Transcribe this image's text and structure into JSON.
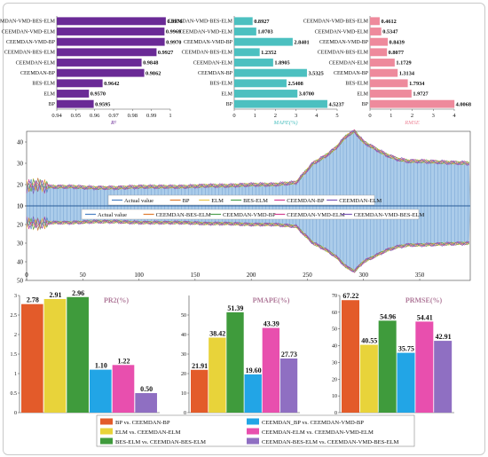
{
  "chart_data": [
    {
      "type": "bar",
      "orientation": "horizontal",
      "xlabel": "R²",
      "xlim": [
        0.94,
        1.0
      ],
      "xticks": [
        "0.94",
        "0.95",
        "0.96",
        "0.97",
        "0.98",
        "0.99",
        "1"
      ],
      "categories": [
        "CEEMDAN-VMD-BES-ELM",
        "CEEMDAN-VMD-ELM",
        "CEEMDAN-VMD-BP",
        "CEEMDAN-BES-ELM",
        "CEEMDAN-ELM",
        "CEEMDAN-BP",
        "BES-ELM",
        "ELM",
        "BP"
      ],
      "values": [
        0.9976,
        0.9969,
        0.997,
        0.9927,
        0.9848,
        0.9862,
        0.9642,
        0.957,
        0.9595
      ],
      "labels": [
        "0.9976",
        "0.9969",
        "0.9970",
        "0.9927",
        "0.9848",
        "0.9862",
        "0.9642",
        "0.9570",
        "0.9595"
      ],
      "color": "#6a2a96"
    },
    {
      "type": "bar",
      "orientation": "horizontal",
      "xlabel": "MAPE(%)",
      "xlim": [
        0,
        5
      ],
      "xticks": [
        "0",
        "1",
        "2",
        "3",
        "4",
        "5"
      ],
      "categories": [
        "CEEMDAN-VMD-BES-ELM",
        "CEEMDAN-VMD-ELM",
        "CEEMDAN-VMD-BP",
        "CEEMDAN-BES-ELM",
        "CEEMDAN-ELM",
        "CEEMDAN-BP",
        "BES-ELM",
        "ELM",
        "BP"
      ],
      "values": [
        0.8927,
        1.0703,
        2.8401,
        1.2352,
        1.8905,
        3.5325,
        2.5408,
        3.07,
        4.5237
      ],
      "labels": [
        "0.8927",
        "1.0703",
        "2.8401",
        "1.2352",
        "1.8905",
        "3.5325",
        "2.5408",
        "3.0700",
        "4.5237"
      ],
      "color": "#4cc0c0"
    },
    {
      "type": "bar",
      "orientation": "horizontal",
      "xlabel": "RMSE",
      "xlim": [
        0,
        4
      ],
      "xticks": [
        "0",
        "1",
        "2",
        "3",
        "4"
      ],
      "categories": [
        "CEEMDAN-VMD-BES-ELM",
        "CEEMDAN-VMD-ELM",
        "CEEMDAN-VMD-BP",
        "CEEMDAN-BES-ELM",
        "CEEMDAN-ELM",
        "CEEMDAN-BP",
        "BES-ELM",
        "ELM",
        "BP"
      ],
      "values": [
        0.4612,
        0.5347,
        0.8439,
        0.8077,
        1.1729,
        1.3134,
        1.7934,
        1.9727,
        4.0068
      ],
      "labels": [
        "0.4612",
        "0.5347",
        "0.8439",
        "0.8077",
        "1.1729",
        "1.3134",
        "1.7934",
        "1.9727",
        "4.0068"
      ],
      "color": "#ee8a9c"
    },
    {
      "type": "line",
      "description_none": "",
      "xlim": [
        0,
        395
      ],
      "xticks": [
        "0",
        "50",
        "100",
        "150",
        "200",
        "250",
        "300",
        "350"
      ],
      "top_ylim": [
        10,
        45
      ],
      "top_yticks": [
        "10",
        "20",
        "30",
        "40"
      ],
      "bottom_ylim": [
        10,
        50
      ],
      "bottom_yticks": [
        "10",
        "20",
        "30",
        "40",
        "50"
      ],
      "top_legend": [
        "Actual value",
        "BP",
        "ELM",
        "BES-ELM",
        "CEEMDAN-BP",
        "CEEMDAN-ELM"
      ],
      "bottom_legend": [
        "Actual value",
        "CEEMDAN-BES-ELM",
        "CEEMDAN-VMD-BP",
        "CEEMDAN-VMD-ELM",
        "CEEMDAN-VMD-BES-ELM"
      ],
      "series_colors": [
        "#4a7fc0",
        "#e07b2e",
        "#e8c44a",
        "#4d9e4d",
        "#d23f8f",
        "#7a57b5"
      ],
      "actual": [
        [
          0,
          19
        ],
        [
          10,
          20
        ],
        [
          20,
          19
        ],
        [
          40,
          19
        ],
        [
          60,
          18.5
        ],
        [
          80,
          18.5
        ],
        [
          100,
          19
        ],
        [
          120,
          19
        ],
        [
          140,
          19
        ],
        [
          160,
          19.5
        ],
        [
          180,
          19.5
        ],
        [
          200,
          20
        ],
        [
          220,
          20
        ],
        [
          240,
          21
        ],
        [
          255,
          30
        ],
        [
          265,
          33
        ],
        [
          275,
          37
        ],
        [
          285,
          43
        ],
        [
          292,
          45
        ],
        [
          300,
          40
        ],
        [
          310,
          37
        ],
        [
          320,
          34
        ],
        [
          330,
          32
        ],
        [
          340,
          31
        ],
        [
          350,
          31
        ],
        [
          370,
          30.5
        ],
        [
          395,
          30
        ]
      ]
    },
    {
      "type": "bar",
      "title": "PR2(%)",
      "ylim": [
        0,
        3
      ],
      "yticks": [
        "0",
        "0.5",
        "1",
        "1.5",
        "2",
        "2.5",
        "3"
      ],
      "values": [
        2.78,
        2.91,
        2.96,
        1.1,
        1.22,
        0.5
      ],
      "labels": [
        "2.78",
        "2.91",
        "2.96",
        "1.10",
        "1.22",
        "0.50"
      ]
    },
    {
      "type": "bar",
      "title": "PMAPE(%)",
      "ylim": [
        0,
        60
      ],
      "yticks": [
        "0",
        "10",
        "20",
        "30",
        "40",
        "50"
      ],
      "values": [
        21.91,
        38.42,
        51.39,
        19.6,
        43.39,
        27.73
      ],
      "labels": [
        "21.91",
        "38.42",
        "51.39",
        "19.60",
        "43.39",
        "27.73"
      ]
    },
    {
      "type": "bar",
      "title": "PRMSE(%)",
      "ylim": [
        0,
        70
      ],
      "yticks": [
        "0",
        "10",
        "20",
        "30",
        "40",
        "50",
        "60",
        "70"
      ],
      "values": [
        67.22,
        40.55,
        54.96,
        35.75,
        54.41,
        42.91
      ],
      "labels": [
        "67.22",
        "40.55",
        "54.96",
        "35.75",
        "54.41",
        "42.91"
      ]
    }
  ],
  "comparison_legend": [
    {
      "label": "BP   vs. CEEMDAN-BP",
      "color": "#e35b2a"
    },
    {
      "label": "CEEMDAN_BP  vs. CEEMDAN-VMD-BP",
      "color": "#22a5e6"
    },
    {
      "label": "ELM   vs. CEEMDAN-ELM",
      "color": "#e8d33a"
    },
    {
      "label": "CEEMDAN-ELM    vs. CEEMDAN-VMD-ELM",
      "color": "#e84fae"
    },
    {
      "label": "BES-ELM   vs. CEEMDAN-BES-ELM",
      "color": "#3f9b3c"
    },
    {
      "label": "CEEMDAN-BES-ELM  vs. CEEMDAN-VMD-BES-ELM",
      "color": "#8f6fc2"
    }
  ]
}
